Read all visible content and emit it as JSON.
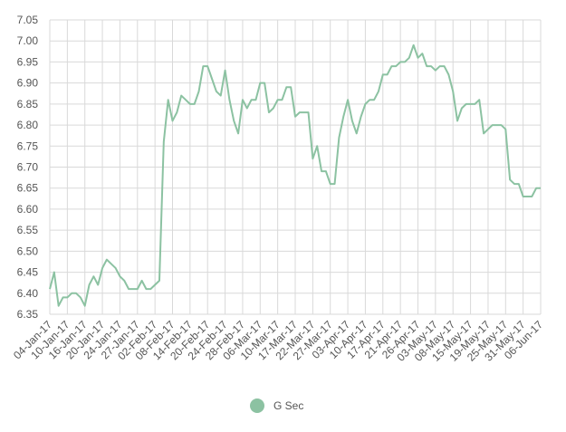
{
  "chart_data": {
    "type": "line",
    "categories": [
      "04-Jan-17",
      null,
      null,
      null,
      "10-Jan-17",
      null,
      null,
      null,
      "16-Jan-17",
      null,
      null,
      null,
      "20-Jan-17",
      null,
      null,
      null,
      "24-Jan-17",
      null,
      null,
      null,
      "27-Jan-17",
      null,
      null,
      null,
      "02-Feb-17",
      null,
      null,
      null,
      "08-Feb-17",
      null,
      null,
      null,
      "14-Feb-17",
      null,
      null,
      null,
      "20-Feb-17",
      null,
      null,
      null,
      "24-Feb-17",
      null,
      null,
      null,
      "28-Feb-17",
      null,
      null,
      null,
      "06-Mar-17",
      null,
      null,
      null,
      "10-Mar-17",
      null,
      null,
      null,
      "17-Mar-17",
      null,
      null,
      null,
      "22-Mar-17",
      null,
      null,
      null,
      "27-Mar-17",
      null,
      null,
      null,
      "03-Apr-17",
      null,
      null,
      null,
      "10-Apr-17",
      null,
      null,
      null,
      "17-Apr-17",
      null,
      null,
      null,
      "21-Apr-17",
      null,
      null,
      null,
      "26-Apr-17",
      null,
      null,
      null,
      "03-May-17",
      null,
      null,
      null,
      "08-May-17",
      null,
      null,
      null,
      "15-May-17",
      null,
      null,
      null,
      "19-May-17",
      null,
      null,
      null,
      "25-May-17",
      null,
      null,
      null,
      "31-May-17",
      null,
      null,
      null,
      "06-Jun-17"
    ],
    "series": [
      {
        "name": "G Sec",
        "color": "#8cc2a2",
        "values": [
          6.41,
          6.45,
          6.37,
          6.39,
          6.39,
          6.4,
          6.4,
          6.39,
          6.37,
          6.42,
          6.44,
          6.42,
          6.46,
          6.48,
          6.47,
          6.46,
          6.44,
          6.43,
          6.41,
          6.41,
          6.41,
          6.43,
          6.41,
          6.41,
          6.42,
          6.43,
          6.76,
          6.86,
          6.81,
          6.83,
          6.87,
          6.86,
          6.85,
          6.85,
          6.88,
          6.94,
          6.94,
          6.91,
          6.88,
          6.87,
          6.93,
          6.86,
          6.81,
          6.78,
          6.86,
          6.84,
          6.86,
          6.86,
          6.9,
          6.9,
          6.83,
          6.84,
          6.86,
          6.86,
          6.89,
          6.89,
          6.82,
          6.83,
          6.83,
          6.83,
          6.72,
          6.75,
          6.69,
          6.69,
          6.66,
          6.66,
          6.77,
          6.82,
          6.86,
          6.81,
          6.78,
          6.82,
          6.85,
          6.86,
          6.86,
          6.88,
          6.92,
          6.92,
          6.94,
          6.94,
          6.95,
          6.95,
          6.96,
          6.99,
          6.96,
          6.97,
          6.94,
          6.94,
          6.93,
          6.94,
          6.94,
          6.92,
          6.88,
          6.81,
          6.84,
          6.85,
          6.85,
          6.85,
          6.86,
          6.78,
          6.79,
          6.8,
          6.8,
          6.8,
          6.79,
          6.67,
          6.66,
          6.66,
          6.63,
          6.63,
          6.63,
          6.65,
          6.65
        ]
      }
    ],
    "ylim": [
      6.35,
      7.05
    ],
    "yticks": [
      6.35,
      {
        "value": 6.4,
        "label": "6.40"
      },
      6.45,
      {
        "value": 6.5,
        "label": "6.50"
      },
      6.55,
      {
        "value": 6.6,
        "label": "6.60"
      },
      6.65,
      {
        "value": 6.7,
        "label": "6.70"
      },
      6.75,
      {
        "value": 6.8,
        "label": "6.80"
      },
      6.85,
      {
        "value": 6.9,
        "label": "6.90"
      },
      6.95,
      {
        "value": 7.0,
        "label": "7.00"
      },
      7.05
    ],
    "grid": true,
    "legend": "bottom"
  }
}
